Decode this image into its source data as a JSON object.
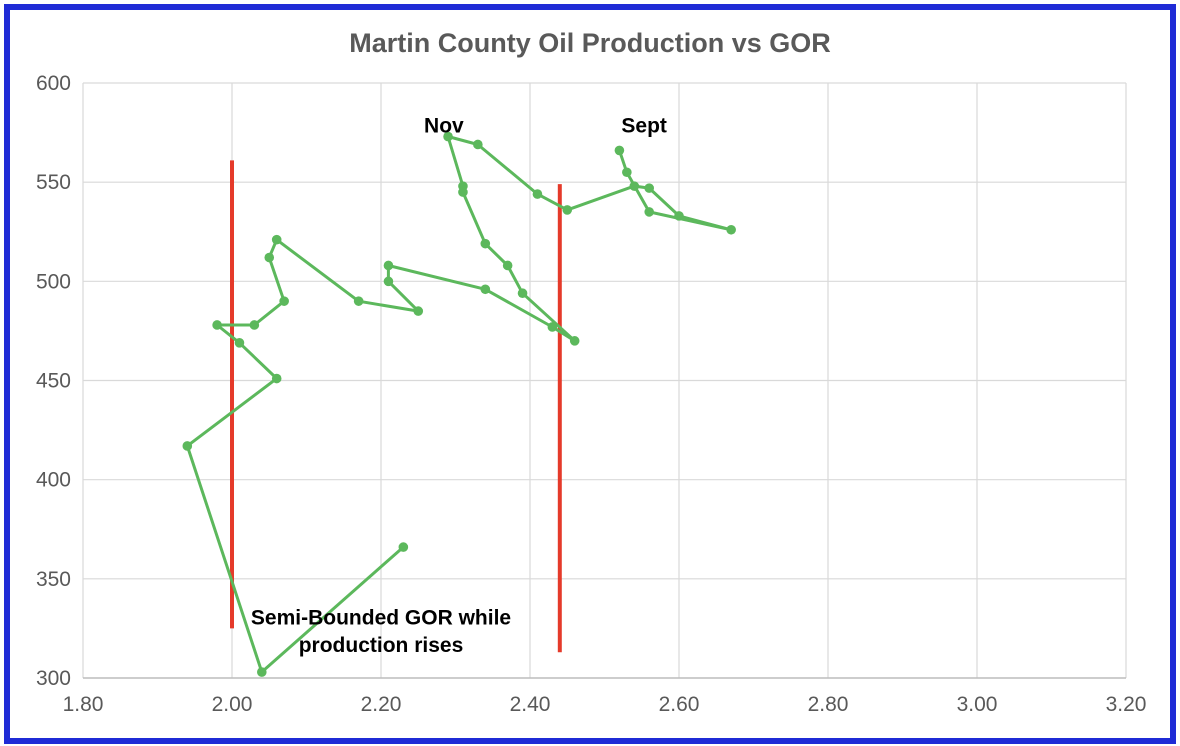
{
  "chart_data": {
    "type": "scatter",
    "title": "Martin County Oil Production vs GOR",
    "xlabel": "",
    "ylabel": "",
    "xlim": [
      1.8,
      3.2
    ],
    "ylim": [
      300,
      600
    ],
    "x_ticks": [
      "1.80",
      "2.00",
      "2.20",
      "2.40",
      "2.60",
      "2.80",
      "3.00",
      "3.20"
    ],
    "y_ticks": [
      "300",
      "350",
      "400",
      "450",
      "500",
      "550",
      "600"
    ],
    "grid": true,
    "legend": "none",
    "series": [
      {
        "color": "#5cb85c",
        "connected": true,
        "points": [
          {
            "x": 2.23,
            "y": 366
          },
          {
            "x": 2.04,
            "y": 303
          },
          {
            "x": 1.94,
            "y": 417
          },
          {
            "x": 2.06,
            "y": 451
          },
          {
            "x": 2.01,
            "y": 469
          },
          {
            "x": 1.98,
            "y": 478
          },
          {
            "x": 2.03,
            "y": 478
          },
          {
            "x": 2.07,
            "y": 490
          },
          {
            "x": 2.05,
            "y": 512
          },
          {
            "x": 2.06,
            "y": 521
          },
          {
            "x": 2.17,
            "y": 490
          },
          {
            "x": 2.25,
            "y": 485
          },
          {
            "x": 2.21,
            "y": 500
          },
          {
            "x": 2.21,
            "y": 508
          },
          {
            "x": 2.34,
            "y": 496
          },
          {
            "x": 2.43,
            "y": 477
          },
          {
            "x": 2.46,
            "y": 470
          },
          {
            "x": 2.39,
            "y": 494
          },
          {
            "x": 2.37,
            "y": 508
          },
          {
            "x": 2.34,
            "y": 519
          },
          {
            "x": 2.31,
            "y": 545
          },
          {
            "x": 2.31,
            "y": 548
          },
          {
            "x": 2.29,
            "y": 573
          },
          {
            "x": 2.33,
            "y": 569
          },
          {
            "x": 2.41,
            "y": 544
          },
          {
            "x": 2.45,
            "y": 536
          },
          {
            "x": 2.54,
            "y": 548
          },
          {
            "x": 2.56,
            "y": 547
          },
          {
            "x": 2.6,
            "y": 533
          },
          {
            "x": 2.67,
            "y": 526
          },
          {
            "x": 2.56,
            "y": 535
          },
          {
            "x": 2.53,
            "y": 555
          },
          {
            "x": 2.52,
            "y": 566
          }
        ]
      }
    ],
    "reference_lines": [
      {
        "x": 2.0,
        "y_from": 325,
        "y_to": 561,
        "color": "#e53a2a"
      },
      {
        "x": 2.44,
        "y_from": 313,
        "y_to": 549,
        "color": "#e53a2a"
      }
    ],
    "annotations": [
      {
        "text": "Nov",
        "x": 2.29,
        "y": 575
      },
      {
        "text": "Sept",
        "x": 2.52,
        "y": 575
      },
      {
        "text": "Semi-Bounded GOR while",
        "x": 2.2,
        "y": 327
      },
      {
        "text": "production rises",
        "x": 2.2,
        "y": 313
      }
    ]
  }
}
